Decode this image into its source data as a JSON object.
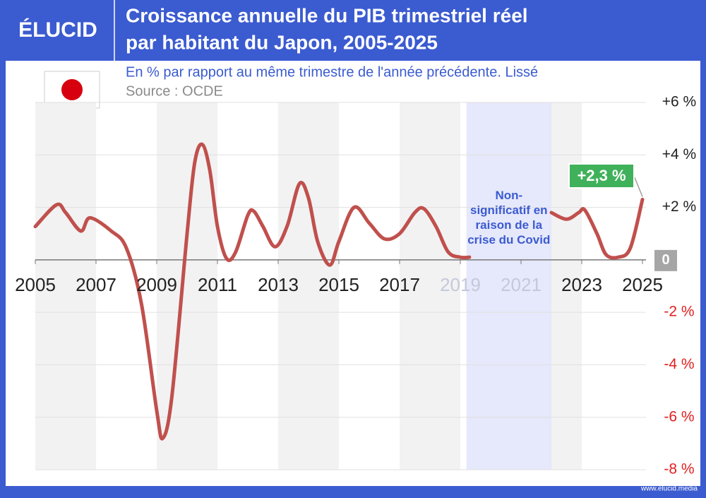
{
  "header": {
    "logo": "ÉLUCID",
    "title_lines": [
      "Croissance annuelle du PIB trimestriel réel",
      "par habitant du Japon, 2005-2025"
    ]
  },
  "footer": "www.elucid.media",
  "chart_data": {
    "type": "line",
    "subtitle": "En % par rapport au même trimestre de l'année précédente. Lissé",
    "source": "Source : OCDE",
    "color": "#c0504d",
    "x": [
      2005.0,
      2005.7,
      2006.0,
      2006.5,
      2006.8,
      2007.5,
      2008.0,
      2008.5,
      2009.0,
      2009.2,
      2009.5,
      2010.0,
      2010.25,
      2010.5,
      2010.75,
      2011.0,
      2011.3,
      2011.6,
      2012.0,
      2012.2,
      2012.5,
      2012.9,
      2013.3,
      2013.7,
      2014.0,
      2014.3,
      2014.7,
      2015.0,
      2015.5,
      2016.0,
      2016.5,
      2017.0,
      2017.5,
      2017.8,
      2018.2,
      2018.6,
      2019.0,
      2019.3,
      2020.5,
      2022.0,
      2022.5,
      2022.9,
      2023.1,
      2023.5,
      2023.8,
      2024.2,
      2024.6,
      2025.0
    ],
    "values": [
      1.27,
      2.1,
      1.8,
      1.1,
      1.6,
      1.1,
      0.45,
      -1.7,
      -5.75,
      -6.8,
      -5.2,
      1.0,
      3.7,
      4.4,
      3.4,
      1.27,
      0.05,
      0.3,
      1.7,
      1.85,
      1.27,
      0.5,
      1.3,
      2.9,
      2.35,
      0.7,
      -0.2,
      0.7,
      2.0,
      1.4,
      0.8,
      1.0,
      1.8,
      1.95,
      1.27,
      0.3,
      0.1,
      0.1,
      null,
      1.8,
      1.55,
      1.8,
      1.9,
      1.0,
      0.2,
      0.1,
      0.45,
      2.3
    ],
    "xlim": [
      2005,
      2025
    ],
    "xticks": [
      2005,
      2007,
      2009,
      2011,
      2013,
      2015,
      2017,
      2019,
      2021,
      2023,
      2025
    ],
    "ylim": [
      -8,
      6
    ],
    "yticks": [
      {
        "value": 6,
        "label": "+6 %"
      },
      {
        "value": 4,
        "label": "+4 %"
      },
      {
        "value": 2,
        "label": "+2 %"
      },
      0,
      {
        "value": -2,
        "label": "-2 %"
      },
      {
        "value": -4,
        "label": "-4 %"
      },
      {
        "value": -6,
        "label": "-6 %"
      },
      {
        "value": -8,
        "label": "-8 %"
      }
    ],
    "grid": true,
    "highlight": {
      "xlim": [
        2019.2,
        2022
      ],
      "label": "Non-significatif en raison de la crise du Covid"
    },
    "annotations": [
      {
        "x": 2025,
        "y": 2.3,
        "label": "+2,3 %"
      }
    ]
  }
}
